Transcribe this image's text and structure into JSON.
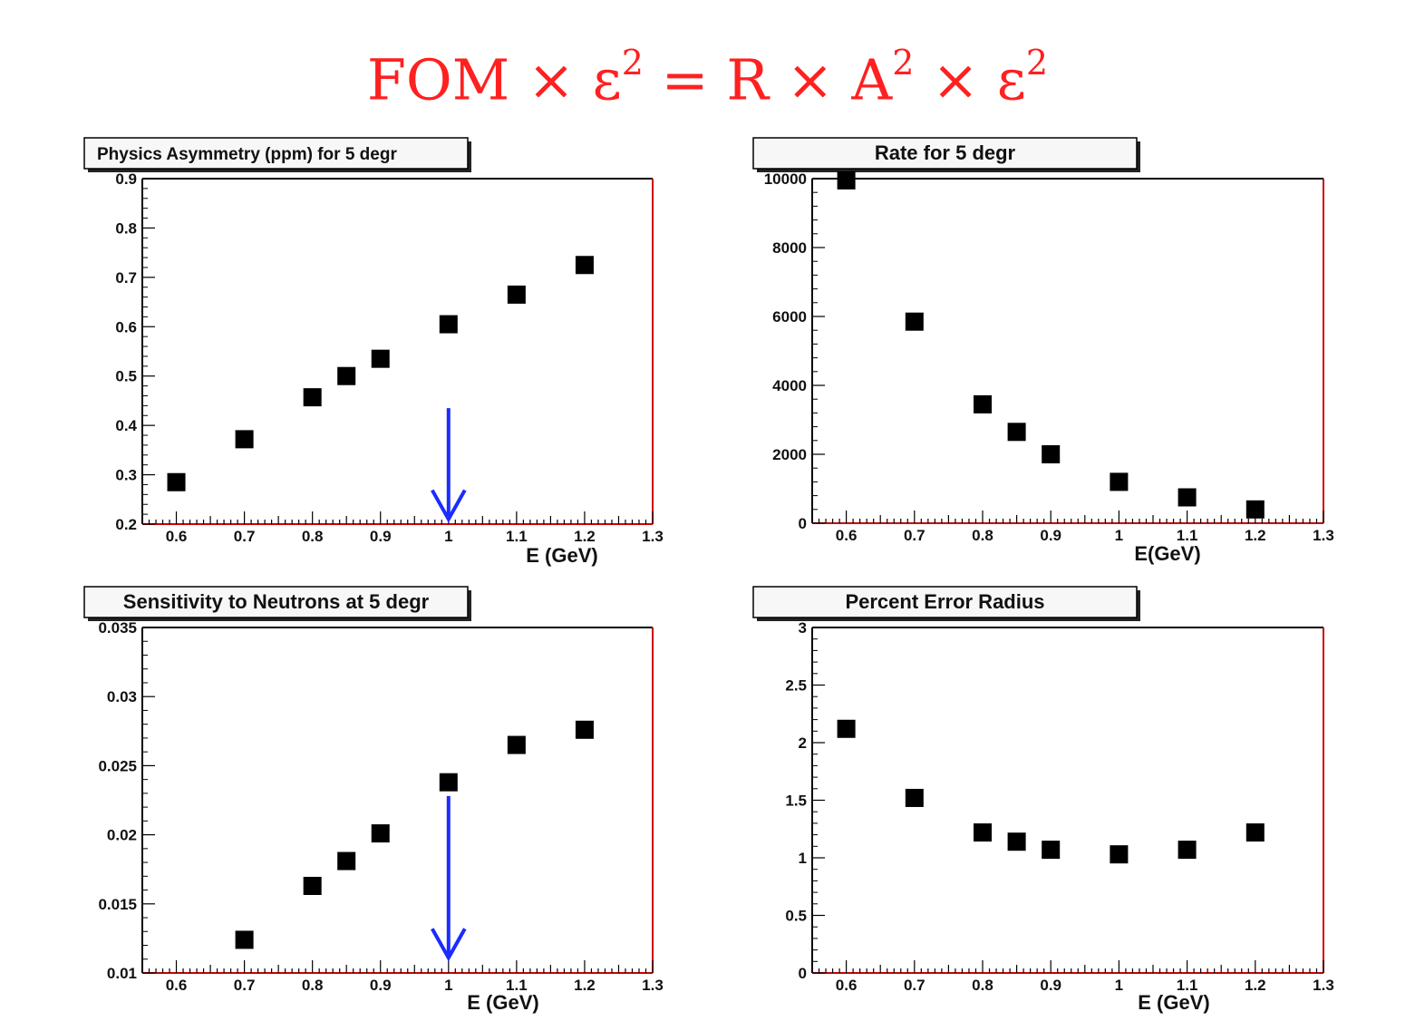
{
  "equation": {
    "fom": "FOM",
    "times": "×",
    "eps": "ε",
    "sq": "2",
    "eq": "=",
    "r": "R",
    "a": "A"
  },
  "colors": {
    "marker": "#000000",
    "arrow": "#1a2cff",
    "frame_right": "#cc0000",
    "frame_bottom": "#cc0000",
    "equation": "#ff2020"
  },
  "chart_data": [
    {
      "type": "scatter",
      "title": "Physics Asymmetry (ppm) for 5 degr",
      "xlabel": "E (GeV)",
      "ylabel": "",
      "xlim": [
        0.55,
        1.3
      ],
      "ylim": [
        0.2,
        0.9
      ],
      "xticks": [
        "0.6",
        "0.7",
        "0.8",
        "0.9",
        "1",
        "1.1",
        "1.2",
        "1.3"
      ],
      "yticks": [
        "0.2",
        "0.3",
        "0.4",
        "0.5",
        "0.6",
        "0.7",
        "0.8",
        "0.9"
      ],
      "x": [
        0.6,
        0.7,
        0.8,
        0.85,
        0.9,
        1.0,
        1.1,
        1.2
      ],
      "y": [
        0.285,
        0.372,
        0.457,
        0.5,
        0.535,
        0.605,
        0.665,
        0.725
      ],
      "arrow": {
        "x": 1.0,
        "y_from": 0.435,
        "y_to": 0.21
      }
    },
    {
      "type": "scatter",
      "title": "Rate for 5 degr",
      "xlabel": "E(GeV)",
      "ylabel": "",
      "xlim": [
        0.55,
        1.3
      ],
      "ylim": [
        0,
        10000
      ],
      "xticks": [
        "0.6",
        "0.7",
        "0.8",
        "0.9",
        "1",
        "1.1",
        "1.2",
        "1.3"
      ],
      "yticks": [
        "0",
        "2000",
        "4000",
        "6000",
        "8000",
        "10000"
      ],
      "x": [
        0.6,
        0.7,
        0.8,
        0.85,
        0.9,
        1.0,
        1.1,
        1.2
      ],
      "y": [
        9950,
        5850,
        3450,
        2650,
        2000,
        1200,
        750,
        400
      ]
    },
    {
      "type": "scatter",
      "title": "Sensitivity to Neutrons at 5 degr",
      "xlabel": "E (GeV)",
      "ylabel": "",
      "xlim": [
        0.55,
        1.3
      ],
      "ylim": [
        0.01,
        0.035
      ],
      "xticks": [
        "0.6",
        "0.7",
        "0.8",
        "0.9",
        "1",
        "1.1",
        "1.2",
        "1.3"
      ],
      "yticks": [
        "0.01",
        "0.015",
        "0.02",
        "0.025",
        "0.03",
        "0.035"
      ],
      "x": [
        0.7,
        0.8,
        0.85,
        0.9,
        1.0,
        1.1,
        1.2
      ],
      "y": [
        0.0124,
        0.0163,
        0.0181,
        0.0201,
        0.0238,
        0.0265,
        0.0276
      ],
      "arrow": {
        "x": 1.0,
        "y_from": 0.0228,
        "y_to": 0.0111
      }
    },
    {
      "type": "scatter",
      "title": "Percent Error Radius",
      "xlabel": "E (GeV)",
      "ylabel": "",
      "xlim": [
        0.55,
        1.3
      ],
      "ylim": [
        0,
        3
      ],
      "xticks": [
        "0.6",
        "0.7",
        "0.8",
        "0.9",
        "1",
        "1.1",
        "1.2",
        "1.3"
      ],
      "yticks": [
        "0",
        "0.5",
        "1",
        "1.5",
        "2",
        "2.5",
        "3"
      ],
      "x": [
        0.6,
        0.7,
        0.8,
        0.85,
        0.9,
        1.0,
        1.1,
        1.2
      ],
      "y": [
        2.12,
        1.52,
        1.22,
        1.14,
        1.07,
        1.03,
        1.07,
        1.22
      ]
    }
  ]
}
